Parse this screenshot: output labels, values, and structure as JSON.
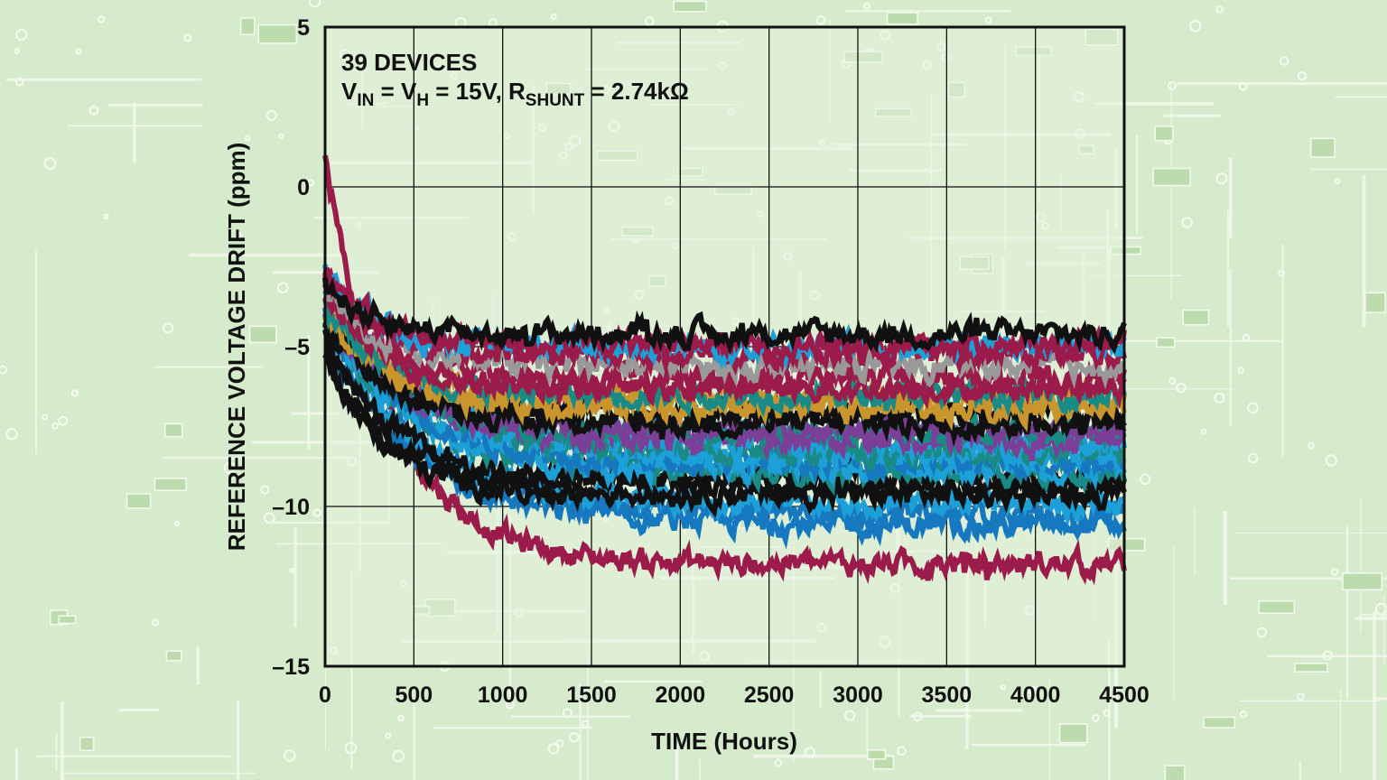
{
  "chart_data": {
    "type": "line",
    "title": "",
    "annotation": {
      "line1": "39 DEVICES",
      "line2": {
        "v": "V",
        "in_sub": "IN",
        "eq1": " = V",
        "h_sub": "H",
        "eq2": " = 15V, R",
        "shunt_sub": "SHUNT",
        "eq3": " = 2.74kΩ"
      }
    },
    "xlabel": "TIME (Hours)",
    "ylabel": "REFERENCE VOLTAGE DRIFT (ppm)",
    "xlim": [
      0,
      4500
    ],
    "ylim": [
      -15,
      5
    ],
    "xticks": [
      0,
      500,
      1000,
      1500,
      2000,
      2500,
      3000,
      3500,
      4000,
      4500
    ],
    "xtick_labels": [
      "0",
      "500",
      "1000",
      "1500",
      "2000",
      "2500",
      "3000",
      "3500",
      "4000",
      "4500"
    ],
    "yticks": [
      5,
      0,
      -5,
      -10,
      -15
    ],
    "ytick_labels": [
      "5",
      "0",
      "–5",
      "–10",
      "–15"
    ],
    "grid": true,
    "series_note": "39 devices; approximate representative traces (start value, settled value, color)",
    "series": [
      {
        "color": "#9b1b4a",
        "start": 0.8,
        "end": -11.8,
        "tau": 380
      },
      {
        "color": "#1679bf",
        "start": -4.0,
        "end": -10.2,
        "tau": 500
      },
      {
        "color": "#1679bf",
        "start": -4.5,
        "end": -10.6,
        "tau": 520
      },
      {
        "color": "#1da0d8",
        "start": -4.2,
        "end": -9.9,
        "tau": 480
      },
      {
        "color": "#111111",
        "start": -4.8,
        "end": -9.6,
        "tau": 300
      },
      {
        "color": "#111111",
        "start": -5.2,
        "end": -9.3,
        "tau": 320
      },
      {
        "color": "#111111",
        "start": -4.6,
        "end": -9.1,
        "tau": 350
      },
      {
        "color": "#1da0d8",
        "start": -3.6,
        "end": -8.8,
        "tau": 420
      },
      {
        "color": "#1da0d8",
        "start": -3.0,
        "end": -8.4,
        "tau": 450
      },
      {
        "color": "#1a8a86",
        "start": -3.8,
        "end": -8.9,
        "tau": 460
      },
      {
        "color": "#1a8a86",
        "start": -3.2,
        "end": -8.3,
        "tau": 480
      },
      {
        "color": "#1679bf",
        "start": -3.4,
        "end": -8.6,
        "tau": 430
      },
      {
        "color": "#1da0d8",
        "start": -3.1,
        "end": -8.0,
        "tau": 470
      },
      {
        "color": "#7b3f98",
        "start": -3.5,
        "end": -7.9,
        "tau": 420
      },
      {
        "color": "#7b3f98",
        "start": -3.9,
        "end": -7.6,
        "tau": 400
      },
      {
        "color": "#1a8a86",
        "start": -3.3,
        "end": -7.7,
        "tau": 380
      },
      {
        "color": "#111111",
        "start": -4.2,
        "end": -7.4,
        "tau": 360
      },
      {
        "color": "#111111",
        "start": -4.0,
        "end": -7.1,
        "tau": 380
      },
      {
        "color": "#c8962d",
        "start": -3.6,
        "end": -6.9,
        "tau": 360
      },
      {
        "color": "#c8962d",
        "start": -4.1,
        "end": -6.6,
        "tau": 340
      },
      {
        "color": "#9b1b4a",
        "start": -3.0,
        "end": -6.3,
        "tau": 300
      },
      {
        "color": "#9b1b4a",
        "start": -3.4,
        "end": -6.0,
        "tau": 320
      },
      {
        "color": "#1a8a86",
        "start": -3.6,
        "end": -6.5,
        "tau": 330
      },
      {
        "color": "#999999",
        "start": -3.2,
        "end": -5.6,
        "tau": 300
      },
      {
        "color": "#9b1b4a",
        "start": -2.8,
        "end": -5.2,
        "tau": 260
      },
      {
        "color": "#9b1b4a",
        "start": -2.5,
        "end": -4.9,
        "tau": 240
      },
      {
        "color": "#111111",
        "start": -3.0,
        "end": -4.6,
        "tau": 260
      },
      {
        "color": "#1da0d8",
        "start": -2.6,
        "end": -5.0,
        "tau": 280
      }
    ]
  }
}
